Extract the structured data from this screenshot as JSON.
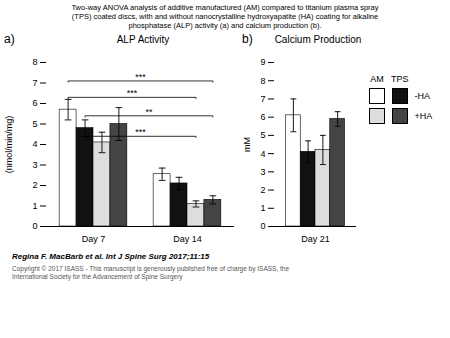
{
  "title": "Two-way ANOVA analysis of additive manufactured (AM) compared to titanium plasma spray\n(TPS) coated discs, with and without nanocrystalline hydroxyapatite (HA) coating for alkaline\nphosphatase (ALP) activity (a) and calcium production (b).",
  "annotations": [
    "Regina F. MacBarb et al. Int J Spine Surg 2017;11:15",
    "Copyright © 2017 ISASS - This manuscript is generously published free of charge by ISASS, the\nInternational Society for the Advancement of Spine Surgery"
  ],
  "chart_data": [
    {
      "type": "bar",
      "title": "ALP Activity",
      "ylabel": "(nmol/min/mg)",
      "categories": [
        "Day 7",
        "Day 14"
      ],
      "series": [
        {
          "name": "-HA",
          "group": "AM",
          "color": "#ffffff",
          "values": [
            5.7,
            2.55
          ],
          "errors": [
            0.5,
            0.3
          ]
        },
        {
          "name": "-HA",
          "group": "TPS",
          "color": "#111111",
          "values": [
            4.8,
            2.1
          ],
          "errors": [
            0.4,
            0.3
          ]
        },
        {
          "name": "+HA",
          "group": "AM",
          "color": "#dddddd",
          "values": [
            4.1,
            1.1
          ],
          "errors": [
            0.5,
            0.15
          ]
        },
        {
          "name": "+HA",
          "group": "TPS",
          "color": "#444444",
          "values": [
            5.0,
            1.3
          ],
          "errors": [
            0.8,
            0.2
          ]
        }
      ],
      "ylim": [
        0,
        8
      ],
      "yticks": [
        0,
        1,
        2,
        3,
        4,
        5,
        6,
        7,
        8
      ],
      "annotations": [
        {
          "text": "a)"
        },
        {
          "text": "***",
          "from": [
            "Day 7",
            "AM",
            "-HA"
          ],
          "to": [
            "Day 14",
            "TPS",
            "+HA"
          ],
          "y": 7.1
        },
        {
          "text": "***",
          "from": [
            "Day 7",
            "AM",
            "-HA"
          ],
          "to": [
            "Day 14",
            "AM",
            "+HA"
          ],
          "y": 6.3
        },
        {
          "text": "**",
          "from": [
            "Day 7",
            "TPS",
            "-HA"
          ],
          "to": [
            "Day 14",
            "TPS",
            "+HA"
          ],
          "y": 5.4
        },
        {
          "text": "***",
          "from": [
            "Day 7",
            "TPS",
            "-HA"
          ],
          "to": [
            "Day 14",
            "AM",
            "+HA"
          ],
          "y": 4.4
        }
      ]
    },
    {
      "type": "bar",
      "title": "Calcium Production",
      "ylabel": "mM",
      "categories": [
        "Day 21"
      ],
      "series": [
        {
          "name": "-HA",
          "group": "AM",
          "color": "#ffffff",
          "values": [
            6.1
          ],
          "errors": [
            0.9
          ]
        },
        {
          "name": "-HA",
          "group": "TPS",
          "color": "#111111",
          "values": [
            4.1
          ],
          "errors": [
            0.6
          ]
        },
        {
          "name": "+HA",
          "group": "AM",
          "color": "#dddddd",
          "values": [
            4.2
          ],
          "errors": [
            0.8
          ]
        },
        {
          "name": "+HA",
          "group": "TPS",
          "color": "#444444",
          "values": [
            5.9
          ],
          "errors": [
            0.4
          ]
        }
      ],
      "ylim": [
        0,
        9
      ],
      "yticks": [
        0,
        1,
        2,
        3,
        4,
        5,
        6,
        7,
        8,
        9
      ],
      "annotations": [
        {
          "text": "b)"
        }
      ]
    }
  ]
}
